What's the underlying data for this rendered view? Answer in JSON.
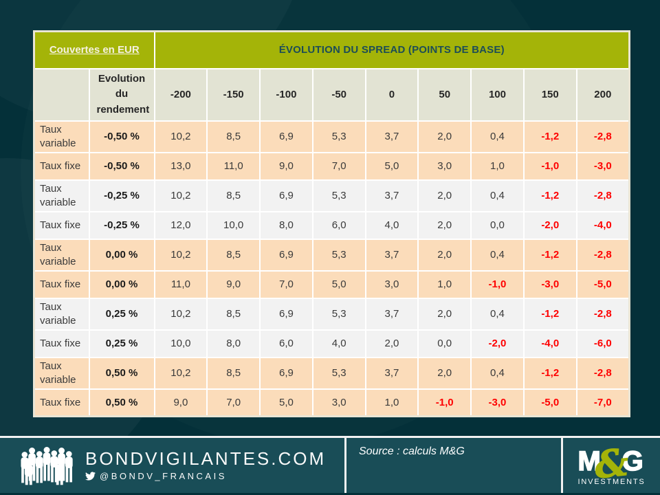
{
  "chart_data": {
    "type": "table",
    "title": "ÉVOLUTION DU SPREAD (POINTS DE BASE)",
    "corner_header": "Couvertes en EUR",
    "yield_header": "Evolution du rendement",
    "spread_columns": [
      "-200",
      "-150",
      "-100",
      "-50",
      "0",
      "50",
      "100",
      "150",
      "200"
    ],
    "rows": [
      {
        "label": "Taux variable",
        "yield": "-0,50 %",
        "band": "peach",
        "values": [
          "10,2",
          "8,5",
          "6,9",
          "5,3",
          "3,7",
          "2,0",
          "0,4",
          "-1,2",
          "-2,8"
        ]
      },
      {
        "label": "Taux fixe",
        "yield": "-0,50 %",
        "band": "peach",
        "values": [
          "13,0",
          "11,0",
          "9,0",
          "7,0",
          "5,0",
          "3,0",
          "1,0",
          "-1,0",
          "-3,0"
        ]
      },
      {
        "label": "Taux variable",
        "yield": "-0,25 %",
        "band": "gray",
        "values": [
          "10,2",
          "8,5",
          "6,9",
          "5,3",
          "3,7",
          "2,0",
          "0,4",
          "-1,2",
          "-2,8"
        ]
      },
      {
        "label": "Taux fixe",
        "yield": "-0,25 %",
        "band": "gray",
        "values": [
          "12,0",
          "10,0",
          "8,0",
          "6,0",
          "4,0",
          "2,0",
          "0,0",
          "-2,0",
          "-4,0"
        ]
      },
      {
        "label": "Taux variable",
        "yield": "0,00 %",
        "band": "peach",
        "values": [
          "10,2",
          "8,5",
          "6,9",
          "5,3",
          "3,7",
          "2,0",
          "0,4",
          "-1,2",
          "-2,8"
        ]
      },
      {
        "label": "Taux fixe",
        "yield": "0,00 %",
        "band": "peach",
        "values": [
          "11,0",
          "9,0",
          "7,0",
          "5,0",
          "3,0",
          "1,0",
          "-1,0",
          "-3,0",
          "-5,0"
        ]
      },
      {
        "label": "Taux variable",
        "yield": "0,25 %",
        "band": "gray",
        "values": [
          "10,2",
          "8,5",
          "6,9",
          "5,3",
          "3,7",
          "2,0",
          "0,4",
          "-1,2",
          "-2,8"
        ]
      },
      {
        "label": "Taux fixe",
        "yield": "0,25 %",
        "band": "gray",
        "values": [
          "10,0",
          "8,0",
          "6,0",
          "4,0",
          "2,0",
          "0,0",
          "-2,0",
          "-4,0",
          "-6,0"
        ]
      },
      {
        "label": "Taux variable",
        "yield": "0,50 %",
        "band": "peach",
        "values": [
          "10,2",
          "8,5",
          "6,9",
          "5,3",
          "3,7",
          "2,0",
          "0,4",
          "-1,2",
          "-2,8"
        ]
      },
      {
        "label": "Taux fixe",
        "yield": "0,50 %",
        "band": "peach",
        "values": [
          "9,0",
          "7,0",
          "5,0",
          "3,0",
          "1,0",
          "-1,0",
          "-3,0",
          "-5,0",
          "-7,0"
        ]
      }
    ]
  },
  "footer": {
    "site_name": "BONDVIGILANTES.COM",
    "twitter_handle": "@BONDV_FRANCAIS",
    "source": "Source : calculs M&G",
    "logo": {
      "m": "M",
      "amp": "&",
      "g": "G",
      "caption": "INVESTMENTS"
    }
  },
  "icons": {
    "crowd": "crowd-icon",
    "twitter": "twitter-icon"
  },
  "colors": {
    "background": "#043039",
    "footer_band": "#194d57",
    "accent_green": "#a4b408",
    "header_beige": "#e2e3d3",
    "row_peach": "#fbdcba",
    "row_gray": "#f2f2f2",
    "negative_red": "#fe0000",
    "title_teal": "#1d4d57"
  }
}
